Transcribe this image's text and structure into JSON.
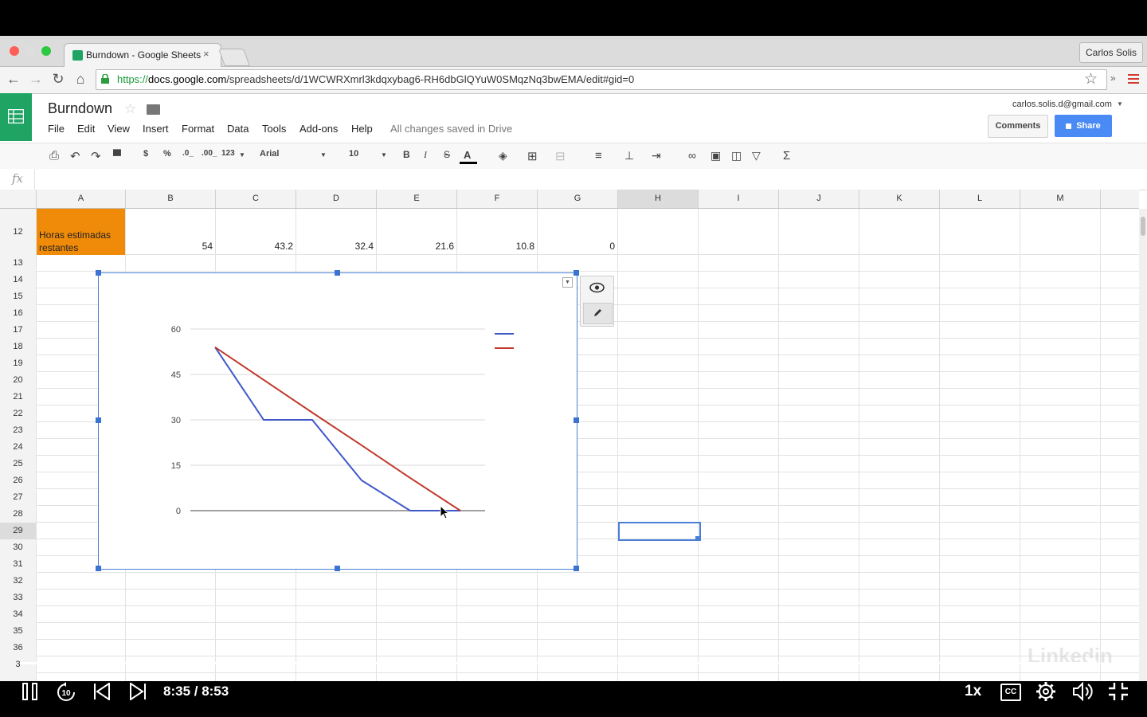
{
  "browser": {
    "tab_title": "Burndown - Google Sheets",
    "tab_close": "×",
    "profile_name": "Carlos Solis",
    "url_scheme": "https://",
    "url_domain": "docs.google.com",
    "url_path": "/spreadsheets/d/1WCWRXmrl3kdqxybag6-RH6dbGlQYuW0SMqzNq3bwEMA/edit#gid=0"
  },
  "sheets": {
    "title": "Burndown",
    "menu": [
      "File",
      "Edit",
      "View",
      "Insert",
      "Format",
      "Data",
      "Tools",
      "Add-ons",
      "Help"
    ],
    "saved_status": "All changes saved in Drive",
    "account": "carlos.solis.d@gmail.com",
    "comments_label": "Comments",
    "share_label": "Share",
    "toolbar": {
      "currency": "$",
      "percent": "%",
      "dec_less": ".0_",
      "dec_more": ".00_",
      "number_format": "123",
      "font": "Arial",
      "font_size": "10",
      "bold": "B",
      "italic": "I",
      "strike": "S",
      "text_color": "A"
    },
    "fx": "fx"
  },
  "grid": {
    "columns": [
      "A",
      "B",
      "C",
      "D",
      "E",
      "F",
      "G",
      "H",
      "I",
      "J",
      "K",
      "L",
      "M"
    ],
    "rows": [
      "12",
      "13",
      "14",
      "15",
      "16",
      "17",
      "18",
      "19",
      "20",
      "21",
      "22",
      "23",
      "24",
      "25",
      "26",
      "27",
      "28",
      "29",
      "30",
      "31",
      "32",
      "33",
      "34",
      "35",
      "36",
      "3"
    ],
    "row12": {
      "a_label": "Horas estimadas restantes",
      "values": [
        "54",
        "43.2",
        "32.4",
        "21.6",
        "10.8",
        "0"
      ]
    }
  },
  "chart_data": {
    "type": "line",
    "title": "",
    "xlabel": "",
    "ylabel": "",
    "ylim": [
      0,
      60
    ],
    "yticks": [
      "60",
      "45",
      "30",
      "15",
      "0"
    ],
    "x": [
      0,
      1,
      2,
      3,
      4,
      5
    ],
    "series": [
      {
        "color": "#3f58c8",
        "values": [
          54,
          30,
          30,
          10,
          0,
          0
        ]
      },
      {
        "color": "#c0392b",
        "values": [
          54,
          43.2,
          32.4,
          21.6,
          10.8,
          0
        ]
      }
    ],
    "legend_position": "right",
    "grid": true
  },
  "video": {
    "time": "8:35 / 8:53",
    "progress": 0.968,
    "speed": "1x",
    "cc": "CC",
    "watermark": "Linkedin"
  }
}
